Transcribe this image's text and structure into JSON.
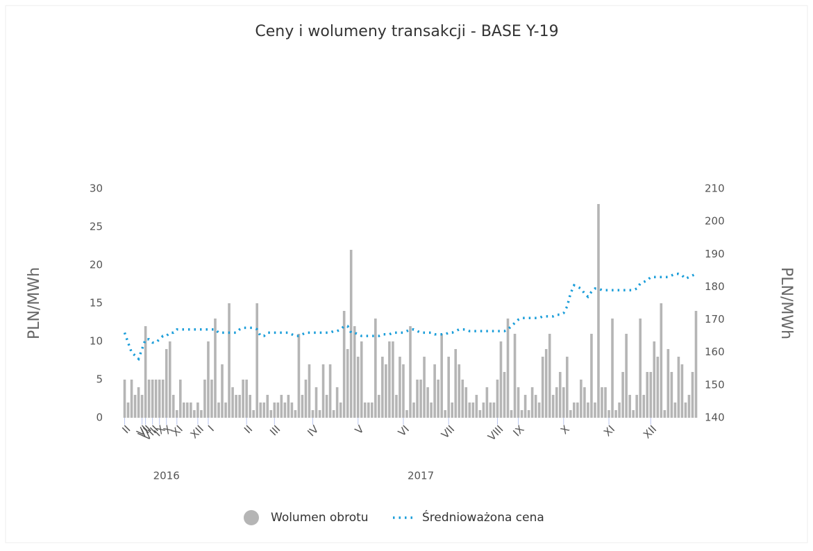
{
  "chart_data": {
    "type": "bar-line",
    "title": "Ceny i wolumeny transakcji - BASE Y-19",
    "ylabel": "PLN/MWh",
    "y2label": "PLN/MWh",
    "ylim": [
      0,
      30
    ],
    "yticks": [
      0,
      5,
      10,
      15,
      20,
      25,
      30
    ],
    "y2lim": [
      140,
      210
    ],
    "y2ticks": [
      140,
      150,
      160,
      170,
      180,
      190,
      200,
      210
    ],
    "year_labels": [
      "2016",
      "2017"
    ],
    "categories": [
      "II",
      null,
      null,
      null,
      null,
      "VI",
      "VII",
      null,
      "VIII",
      null,
      "IX",
      null,
      "X",
      null,
      null,
      "XI",
      null,
      null,
      null,
      null,
      null,
      "XII",
      null,
      null,
      "I",
      null,
      null,
      null,
      null,
      null,
      null,
      null,
      null,
      null,
      null,
      "II",
      null,
      null,
      null,
      null,
      null,
      null,
      null,
      "III",
      null,
      null,
      null,
      null,
      null,
      null,
      null,
      null,
      null,
      null,
      "IV",
      null,
      null,
      null,
      null,
      null,
      null,
      null,
      null,
      null,
      null,
      null,
      null,
      "V",
      null,
      null,
      null,
      null,
      null,
      null,
      null,
      null,
      null,
      null,
      null,
      null,
      "VI",
      null,
      null,
      null,
      null,
      null,
      null,
      null,
      null,
      null,
      null,
      null,
      null,
      "VII",
      null,
      null,
      null,
      null,
      null,
      null,
      null,
      null,
      null,
      null,
      null,
      null,
      null,
      "VIII",
      null,
      null,
      null,
      null,
      null,
      "IX",
      null,
      null,
      null,
      null,
      null,
      null,
      null,
      null,
      null,
      null,
      null,
      null,
      "X",
      null,
      null,
      null,
      null,
      null,
      null,
      null,
      null,
      null,
      null,
      null,
      null,
      "XI",
      null,
      null,
      null,
      null,
      null,
      null,
      null,
      null,
      null,
      null,
      null,
      "XII",
      null,
      null,
      null,
      null,
      null,
      null,
      null,
      null,
      null,
      null,
      null,
      null,
      null
    ],
    "series": [
      {
        "name": "Wolumen obrotu",
        "type": "bar",
        "color": "#b5b5b5",
        "values": [
          5,
          2,
          5,
          3,
          4,
          3,
          12,
          5,
          5,
          5,
          5,
          5,
          9,
          10,
          3,
          1,
          5,
          2,
          2,
          2,
          1,
          2,
          1,
          5,
          10,
          5,
          13,
          2,
          7,
          2,
          15,
          4,
          3,
          3,
          5,
          5,
          3,
          1,
          15,
          2,
          2,
          3,
          1,
          2,
          2,
          3,
          2,
          3,
          2,
          1,
          11,
          3,
          5,
          7,
          1,
          4,
          1,
          7,
          3,
          7,
          1,
          4,
          2,
          14,
          9,
          22,
          12,
          8,
          10,
          2,
          2,
          2,
          13,
          3,
          8,
          7,
          10,
          10,
          3,
          8,
          7,
          1,
          12,
          2,
          5,
          5,
          8,
          4,
          2,
          7,
          5,
          11,
          1,
          8,
          2,
          9,
          7,
          5,
          4,
          2,
          2,
          3,
          1,
          2,
          4,
          2,
          2,
          5,
          10,
          6,
          13,
          1,
          11,
          4,
          1,
          3,
          1,
          4,
          3,
          2,
          8,
          9,
          11,
          3,
          4,
          6,
          4,
          8,
          1,
          2,
          2,
          5,
          4,
          2,
          11,
          2,
          28,
          4,
          4,
          1,
          13,
          1,
          2,
          6,
          11,
          3,
          1,
          3,
          13,
          3,
          6,
          6,
          10,
          8,
          15,
          1,
          9,
          6,
          2,
          8,
          7,
          2,
          3,
          6,
          14
        ]
      },
      {
        "name": "Średnioważona cena",
        "type": "line",
        "axis": "y2",
        "color": "#1a9dd9",
        "values": [
          166,
          163,
          160,
          159,
          158,
          161,
          164,
          164,
          163,
          163,
          164,
          165,
          165,
          166,
          166,
          167,
          167,
          167,
          167,
          167,
          167,
          167,
          167,
          167,
          167,
          167,
          167,
          166,
          166,
          166,
          166,
          166,
          166,
          167,
          167.5,
          167.5,
          167.5,
          167.5,
          167,
          165,
          165,
          166,
          166,
          166,
          166,
          166,
          166,
          166,
          165.5,
          165,
          165,
          165.5,
          166,
          166,
          166,
          166,
          166,
          166,
          166,
          166,
          166.5,
          166.5,
          167,
          168,
          168,
          166,
          166,
          165.5,
          165,
          165,
          165,
          165,
          165,
          165,
          165.5,
          165.5,
          165.5,
          166,
          166,
          166,
          166,
          166.5,
          167,
          167,
          166.5,
          166,
          166,
          166,
          166,
          165.5,
          165.5,
          165.5,
          165.5,
          166,
          166,
          166.5,
          167,
          167,
          167,
          166.5,
          166.5,
          166.5,
          166.5,
          166.5,
          166.5,
          166.5,
          166.5,
          166.5,
          166.5,
          166.5,
          167,
          168,
          169,
          170,
          170.5,
          170.5,
          170.5,
          170.5,
          170.5,
          170.5,
          171,
          171,
          171,
          171,
          171.5,
          171.5,
          172,
          174,
          178,
          180.5,
          180,
          179.5,
          178,
          177,
          178.5,
          179.5,
          179.5,
          179,
          179,
          179,
          179,
          179,
          179,
          179,
          179,
          179,
          179,
          179.5,
          181,
          181.5,
          182,
          183,
          183,
          183,
          183,
          183,
          183,
          183.5,
          184,
          184,
          183.5,
          182.5,
          183,
          183.5,
          184
        ]
      }
    ]
  }
}
